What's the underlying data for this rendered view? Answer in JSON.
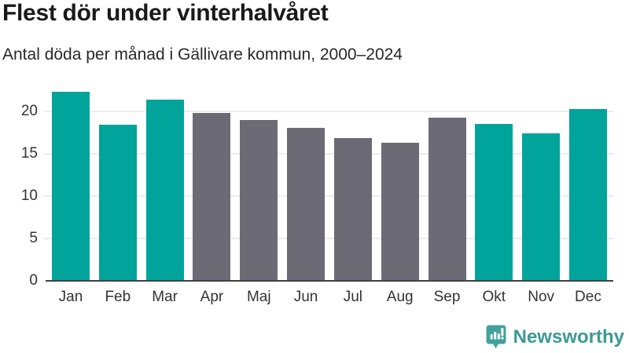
{
  "header": {
    "title": "Flest dör under vinterhalvåret",
    "subtitle": "Antal döda per månad i Gällivare kommun, 2000–2024"
  },
  "chart_data": {
    "type": "bar",
    "title": "Flest dör under vinterhalvåret",
    "subtitle": "Antal döda per månad i Gällivare kommun, 2000–2024",
    "categories": [
      "Jan",
      "Feb",
      "Mar",
      "Apr",
      "Maj",
      "Jun",
      "Jul",
      "Aug",
      "Sep",
      "Okt",
      "Nov",
      "Dec"
    ],
    "values": [
      22.3,
      18.4,
      21.4,
      19.8,
      19.0,
      18.1,
      16.9,
      16.3,
      19.3,
      18.5,
      17.4,
      20.3
    ],
    "xlabel": "",
    "ylabel": "",
    "ylim": [
      0,
      22.8
    ],
    "yticks": [
      0,
      5,
      10,
      15,
      20
    ],
    "grid": true,
    "legend": false,
    "bar_color_keys": [
      "teal",
      "teal",
      "teal",
      "gray",
      "gray",
      "gray",
      "gray",
      "gray",
      "gray",
      "teal",
      "teal",
      "teal"
    ],
    "colors": {
      "teal": "#00a49a",
      "gray": "#6c6a74"
    },
    "highlight_meaning": "winter-half-year months in teal, summer-half-year months in gray"
  },
  "footer": {
    "brand": "Newsworthy",
    "brand_color": "#3b9a93",
    "logo_icon": "bar-chart-speech-bubble-icon"
  }
}
